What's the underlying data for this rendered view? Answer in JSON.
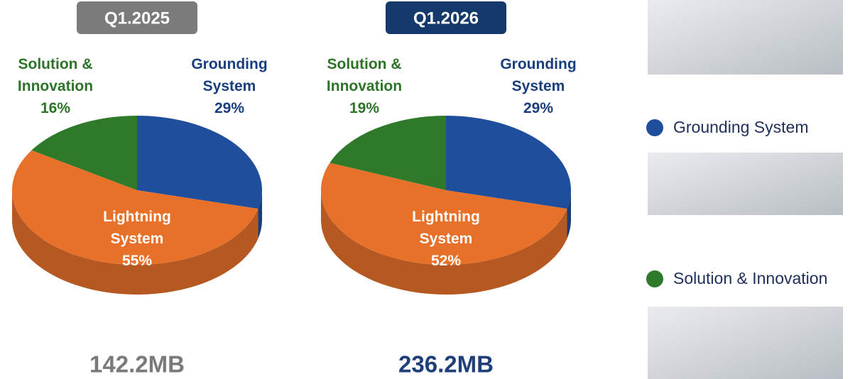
{
  "chart_data": [
    {
      "type": "pie",
      "title": "Q1.2025",
      "categories": [
        "Grounding System",
        "Lightning System",
        "Solution & Innovation"
      ],
      "values": [
        29,
        55,
        16
      ],
      "value_labels": [
        "29%",
        "55%",
        "16%"
      ],
      "colors": [
        "#1f4e9c",
        "#e8712a",
        "#2e7a2a"
      ],
      "total": "142.2MB"
    },
    {
      "type": "pie",
      "title": "Q1.2026",
      "categories": [
        "Grounding System",
        "Lightning System",
        "Solution & Innovation"
      ],
      "values": [
        29,
        52,
        19
      ],
      "value_labels": [
        "29%",
        "52%",
        "19%"
      ],
      "colors": [
        "#1f4e9c",
        "#e8712a",
        "#2e7a2a"
      ],
      "total": "236.2MB"
    }
  ]
}
